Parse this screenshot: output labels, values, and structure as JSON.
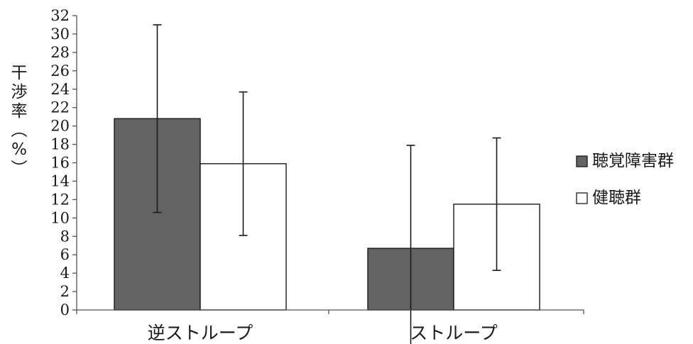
{
  "chart_data": {
    "type": "bar",
    "categories": [
      "逆ストループ",
      "ストループ"
    ],
    "series": [
      {
        "name": "聴覚障害群",
        "values": [
          20.8,
          6.7
        ],
        "error": [
          10.2,
          11.2
        ],
        "color": "#636363"
      },
      {
        "name": "健聴群",
        "values": [
          15.9,
          11.5
        ],
        "error": [
          7.8,
          7.2
        ],
        "color": "#ffffff"
      }
    ],
    "ylabel": "干渉率（%）",
    "ylim": [
      0,
      32
    ],
    "yticks": [
      0,
      2,
      4,
      6,
      8,
      10,
      12,
      14,
      16,
      18,
      20,
      22,
      24,
      26,
      28,
      30,
      32
    ],
    "grid": false,
    "legend_position": "right"
  }
}
